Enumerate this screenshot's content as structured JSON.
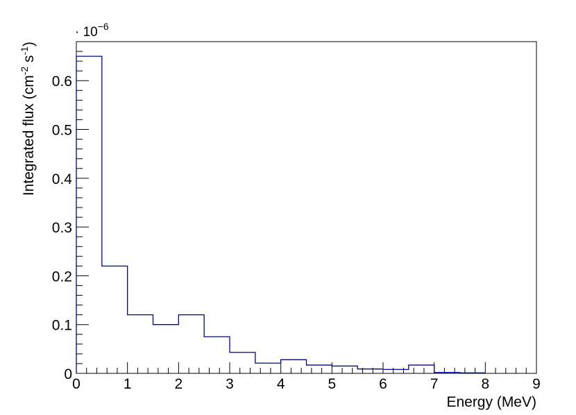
{
  "chart_data": {
    "type": "histogram",
    "xlabel": "Energy (MeV)",
    "ylabel": {
      "prefix": "Integrated  flux (cm",
      "sup1": "-2",
      "mid": " s",
      "sup2": "-1",
      "suffix": ")"
    },
    "y_multiplier": {
      "prefix": "· 10",
      "exponent": "−6"
    },
    "xlim": [
      0,
      9
    ],
    "ylim": [
      0,
      0.68
    ],
    "x_ticks": [
      "0",
      "1",
      "2",
      "3",
      "4",
      "5",
      "6",
      "7",
      "8",
      "9"
    ],
    "y_ticks": [
      "0",
      "0.1",
      "0.2",
      "0.3",
      "0.4",
      "0.5",
      "0.6"
    ],
    "bin_edges": [
      0,
      0.5,
      1,
      1.5,
      2,
      2.5,
      3,
      3.5,
      4,
      4.5,
      5,
      5.5,
      6,
      6.5,
      7,
      7.5,
      8
    ],
    "values": [
      0.65,
      0.22,
      0.12,
      0.1,
      0.12,
      0.075,
      0.043,
      0.021,
      0.028,
      0.017,
      0.015,
      0.009,
      0.008,
      0.017,
      0.002,
      0.001
    ],
    "line_color": "#000099",
    "grid": false,
    "legend": "none"
  }
}
